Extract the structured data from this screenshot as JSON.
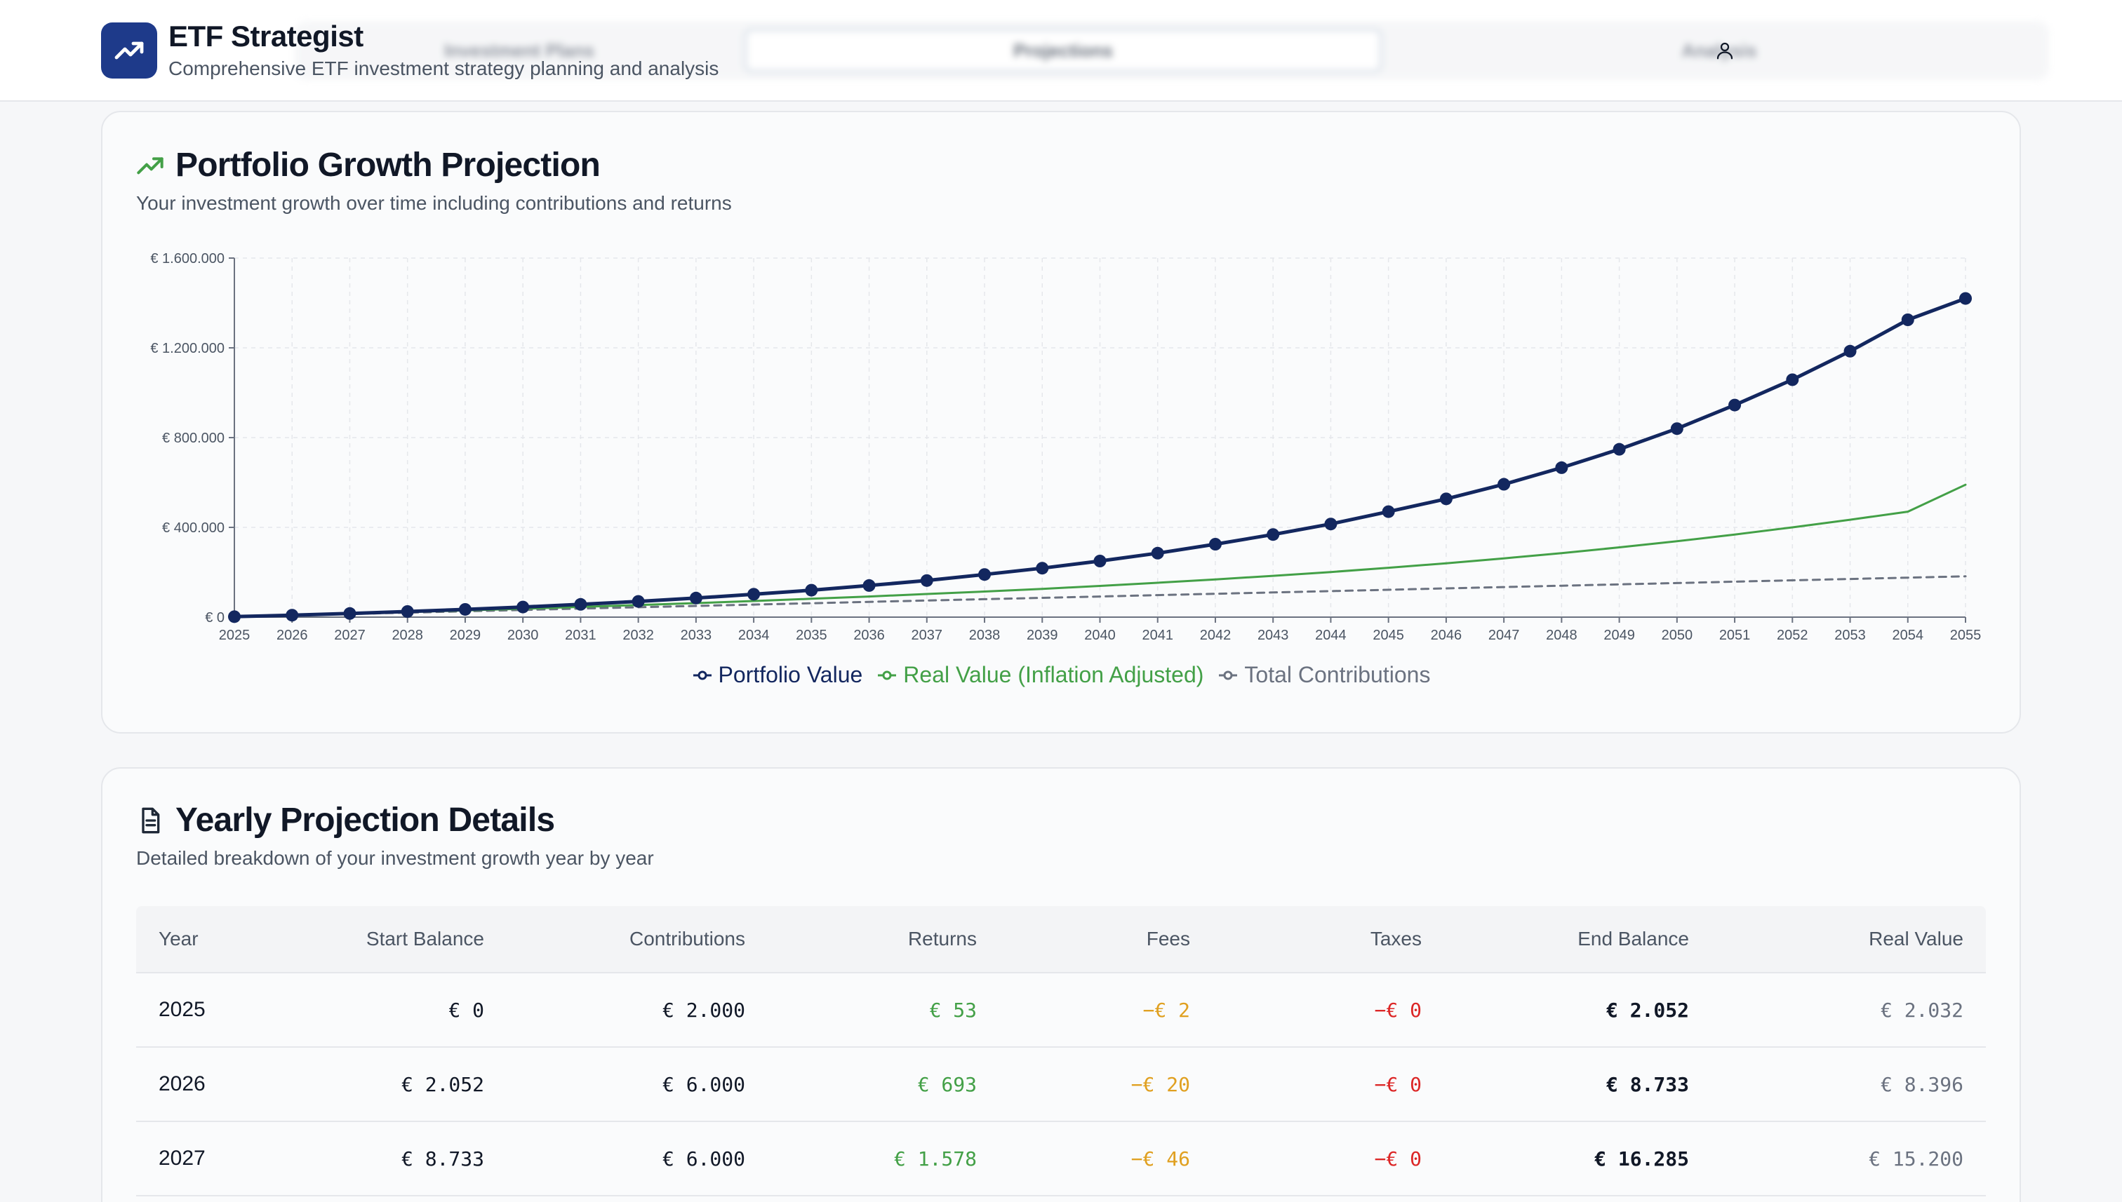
{
  "header": {
    "app_title": "ETF Strategist",
    "app_subtitle": "Comprehensive ETF investment strategy planning and analysis",
    "tabs": [
      {
        "label": "Investment Plans"
      },
      {
        "label": "Projections"
      },
      {
        "label": "Analysis"
      }
    ],
    "active_tab": "Projections"
  },
  "colors": {
    "brand": "#1e3a8a",
    "portfolio_line": "#13275f",
    "real_line": "#43a047",
    "contrib_line": "#6b7280",
    "fees": "#e0a020",
    "taxes": "#dc2626",
    "returns": "#43a047"
  },
  "projection_card": {
    "icon": "trending-up-icon",
    "title": "Portfolio Growth Projection",
    "subtitle": "Your investment growth over time including contributions and returns"
  },
  "details_card": {
    "icon": "document-icon",
    "title": "Yearly Projection Details",
    "subtitle": "Detailed breakdown of your investment growth year by year"
  },
  "chart_data": {
    "type": "line",
    "title": "Portfolio Growth Projection",
    "xlabel": "",
    "ylabel": "",
    "ylim": [
      0,
      1600000
    ],
    "yticks": [
      0,
      400000,
      800000,
      1200000,
      1600000
    ],
    "ytick_labels": [
      "€ 0",
      "€ 400.000",
      "€ 800.000",
      "€ 1.200.000",
      "€ 1.600.000"
    ],
    "grid": true,
    "legend_position": "bottom-center",
    "x": [
      2025,
      2026,
      2027,
      2028,
      2029,
      2030,
      2031,
      2032,
      2033,
      2034,
      2035,
      2036,
      2037,
      2038,
      2039,
      2040,
      2041,
      2042,
      2043,
      2044,
      2045,
      2046,
      2047,
      2048,
      2049,
      2050,
      2051,
      2052,
      2053,
      2054,
      2055
    ],
    "series": [
      {
        "name": "Portfolio Value",
        "color": "#13275f",
        "markers": true,
        "values": [
          2052,
          8733,
          16285,
          25000,
          34500,
          45000,
          57000,
          70000,
          85000,
          102000,
          120000,
          141000,
          163000,
          190000,
          218000,
          250000,
          285000,
          325000,
          368000,
          415000,
          470000,
          527000,
          592000,
          666000,
          748000,
          840000,
          945000,
          1058000,
          1185000,
          1325000,
          1420000
        ]
      },
      {
        "name": "Real Value (Inflation Adjusted)",
        "color": "#43a047",
        "markers": false,
        "values": [
          2032,
          8396,
          15200,
          22500,
          30000,
          37500,
          45500,
          54000,
          62500,
          72000,
          82000,
          92000,
          103000,
          114000,
          126000,
          139000,
          153000,
          168000,
          184000,
          201000,
          220000,
          240000,
          262000,
          285000,
          311000,
          338000,
          368000,
          400000,
          434000,
          470000,
          590000
        ]
      },
      {
        "name": "Total Contributions",
        "color": "#6b7280",
        "markers": false,
        "dashed": true,
        "values": [
          2000,
          8000,
          14000,
          20000,
          26000,
          32000,
          38000,
          44000,
          50000,
          56000,
          62000,
          68000,
          74000,
          80000,
          86000,
          92000,
          98000,
          104000,
          110000,
          116000,
          122000,
          128000,
          134000,
          140000,
          146000,
          152000,
          158000,
          164000,
          170000,
          176000,
          182000
        ]
      }
    ]
  },
  "table": {
    "columns": [
      "Year",
      "Start Balance",
      "Contributions",
      "Returns",
      "Fees",
      "Taxes",
      "End Balance",
      "Real Value"
    ],
    "rows": [
      {
        "year": "2025",
        "start": "€ 0",
        "contrib": "€ 2.000",
        "returns": "€ 53",
        "fees": "−€ 2",
        "taxes": "−€ 0",
        "end": "€ 2.052",
        "real": "€ 2.032"
      },
      {
        "year": "2026",
        "start": "€ 2.052",
        "contrib": "€ 6.000",
        "returns": "€ 693",
        "fees": "−€ 20",
        "taxes": "−€ 0",
        "end": "€ 8.733",
        "real": "€ 8.396"
      },
      {
        "year": "2027",
        "start": "€ 8.733",
        "contrib": "€ 6.000",
        "returns": "€ 1.578",
        "fees": "−€ 46",
        "taxes": "−€ 0",
        "end": "€ 16.285",
        "real": "€ 15.200"
      }
    ]
  }
}
